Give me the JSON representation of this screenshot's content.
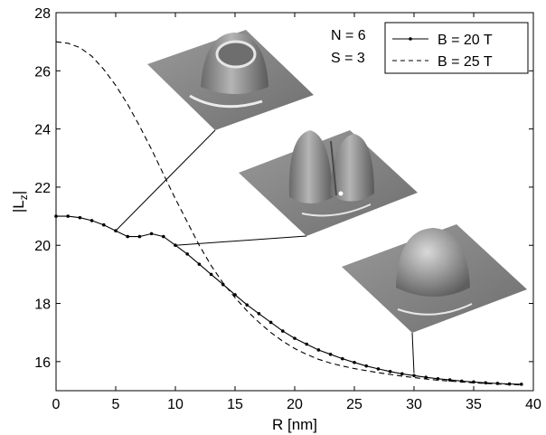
{
  "chart_data": {
    "type": "line",
    "xlabel": "R  [nm]",
    "ylabel_main": "|L",
    "ylabel_sub": "z",
    "ylabel_end": "|",
    "xlim": [
      0,
      40
    ],
    "ylim": [
      15,
      28
    ],
    "x_ticks": [
      0,
      5,
      10,
      15,
      20,
      25,
      30,
      35,
      40
    ],
    "y_ticks": [
      16,
      18,
      20,
      22,
      24,
      26,
      28
    ],
    "grid": false,
    "legend_position": "top-right",
    "params": [
      "N = 6",
      "S = 3"
    ],
    "series": [
      {
        "name": "B = 20 T",
        "style": "solid-with-dots",
        "x": [
          0,
          1,
          2,
          3,
          4,
          5,
          6,
          7,
          8,
          9,
          10,
          11,
          12,
          13,
          14,
          15,
          16,
          17,
          18,
          19,
          20,
          21,
          22,
          23,
          24,
          25,
          26,
          27,
          28,
          29,
          30,
          31,
          32,
          33,
          34,
          35,
          36,
          37,
          38,
          39
        ],
        "y": [
          21.0,
          21.0,
          20.95,
          20.85,
          20.7,
          20.5,
          20.3,
          20.3,
          20.4,
          20.3,
          20.0,
          19.7,
          19.35,
          19.0,
          18.65,
          18.3,
          17.95,
          17.65,
          17.35,
          17.05,
          16.8,
          16.6,
          16.4,
          16.25,
          16.1,
          15.97,
          15.85,
          15.75,
          15.66,
          15.58,
          15.52,
          15.46,
          15.41,
          15.37,
          15.33,
          15.3,
          15.27,
          15.25,
          15.23,
          15.22
        ]
      },
      {
        "name": "B = 25 T",
        "style": "dashed",
        "x": [
          0,
          1,
          2,
          3,
          4,
          5,
          6,
          7,
          8,
          9,
          10,
          11,
          12,
          13,
          14,
          15,
          16,
          17,
          18,
          19,
          20,
          21,
          22,
          23,
          24,
          25,
          26,
          27,
          28,
          29,
          30,
          31,
          32,
          33,
          34,
          35,
          36,
          37,
          38,
          39
        ],
        "y": [
          27.0,
          26.95,
          26.8,
          26.5,
          26.05,
          25.5,
          24.85,
          24.1,
          23.3,
          22.45,
          21.6,
          20.8,
          20.0,
          19.3,
          18.7,
          18.2,
          17.75,
          17.35,
          17.0,
          16.7,
          16.45,
          16.25,
          16.08,
          15.95,
          15.85,
          15.76,
          15.69,
          15.62,
          15.56,
          15.5,
          15.45,
          15.4,
          15.36,
          15.33,
          15.3,
          15.27,
          15.25,
          15.23,
          15.21,
          15.2
        ]
      }
    ],
    "insets": [
      {
        "shape": "ring",
        "target": [
          5,
          20.5
        ]
      },
      {
        "shape": "double-ridge",
        "target": [
          10,
          20.0
        ]
      },
      {
        "shape": "dome",
        "target": [
          30,
          15.6
        ]
      }
    ]
  }
}
